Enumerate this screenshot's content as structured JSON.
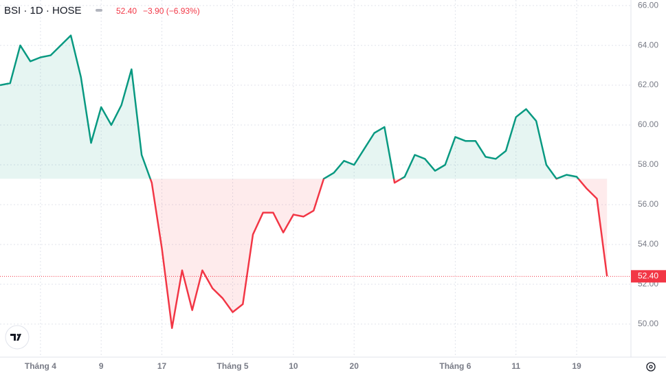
{
  "chart_data": {
    "type": "baseline",
    "symbol": "BSI · 1D · HOSE",
    "price": "52.40",
    "change": "−3.90 (−6.93%)",
    "categories": [
      null,
      null,
      null,
      null,
      "Tháng 4",
      null,
      null,
      null,
      null,
      null,
      "9",
      null,
      null,
      null,
      null,
      null,
      "17",
      null,
      null,
      null,
      null,
      null,
      null,
      "Tháng 5",
      null,
      null,
      null,
      null,
      null,
      "10",
      null,
      null,
      null,
      null,
      null,
      "20",
      null,
      null,
      null,
      null,
      null,
      null,
      null,
      null,
      null,
      "Tháng 6",
      null,
      null,
      null,
      null,
      null,
      "11",
      null,
      null,
      null,
      null,
      null,
      "19",
      null,
      null,
      null
    ],
    "values": [
      62.0,
      62.1,
      64.0,
      63.2,
      63.4,
      63.5,
      64.0,
      64.5,
      62.4,
      59.1,
      60.9,
      60.0,
      61.0,
      62.8,
      58.5,
      57.1,
      53.8,
      49.8,
      52.7,
      50.7,
      52.7,
      51.8,
      51.3,
      50.6,
      51.0,
      54.5,
      55.6,
      55.6,
      54.6,
      55.5,
      55.4,
      55.7,
      57.3,
      57.6,
      58.2,
      58.0,
      58.8,
      59.6,
      59.9,
      57.1,
      57.4,
      58.5,
      58.3,
      57.7,
      58.0,
      59.4,
      59.2,
      59.2,
      58.4,
      58.3,
      58.7,
      60.4,
      60.8,
      60.2,
      58.0,
      57.3,
      57.5,
      57.4,
      56.8,
      56.3,
      52.4
    ],
    "baseline": 57.3,
    "last_price": {
      "value": 52.4,
      "label": "52.40"
    },
    "up_color": "#089981",
    "down_color": "#f23645",
    "ylim": [
      48.34,
      66.28
    ],
    "yticks": [
      {
        "value": 50,
        "label": "50.00"
      },
      {
        "value": 52,
        "label": "52.00"
      },
      {
        "value": 54,
        "label": "54.00"
      },
      {
        "value": 56,
        "label": "56.00"
      },
      {
        "value": 58,
        "label": "58.00"
      },
      {
        "value": 60,
        "label": "60.00"
      },
      {
        "value": 62,
        "label": "62.00"
      },
      {
        "value": 64,
        "label": "64.00"
      },
      {
        "value": 66,
        "label": "66.00"
      }
    ],
    "grid": true
  }
}
